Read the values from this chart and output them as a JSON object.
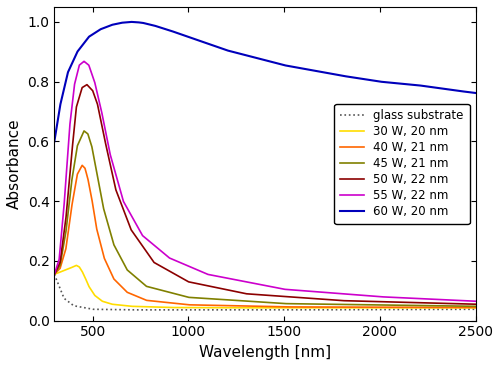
{
  "xlabel": "Wavelength [nm]",
  "ylabel": "Absorbance",
  "xlim": [
    300,
    2500
  ],
  "ylim": [
    0.0,
    1.05
  ],
  "legend_entries": [
    "glass substrate",
    "30 W, 20 nm",
    "40 W, 21 nm",
    "45 W, 21 nm",
    "50 W, 22 nm",
    "55 W, 22 nm",
    "60 W, 20 nm"
  ],
  "colors": [
    "#555555",
    "#FFDD00",
    "#FF6600",
    "#808000",
    "#8B0000",
    "#CC00CC",
    "#0000BB"
  ],
  "linestyles": [
    "dotted",
    "solid",
    "solid",
    "solid",
    "solid",
    "solid",
    "solid"
  ],
  "linewidths": [
    1.2,
    1.2,
    1.2,
    1.2,
    1.2,
    1.2,
    1.5
  ],
  "curves": {
    "glass": {
      "x": [
        300,
        350,
        400,
        500,
        700,
        1000,
        1500,
        2000,
        2500
      ],
      "y": [
        0.155,
        0.075,
        0.05,
        0.038,
        0.036,
        0.036,
        0.036,
        0.037,
        0.038
      ]
    },
    "30W": {
      "x": [
        300,
        340,
        380,
        415,
        430,
        445,
        460,
        480,
        510,
        550,
        600,
        700,
        900,
        1200,
        1800,
        2500
      ],
      "y": [
        0.155,
        0.165,
        0.175,
        0.185,
        0.18,
        0.165,
        0.145,
        0.115,
        0.085,
        0.065,
        0.055,
        0.048,
        0.044,
        0.043,
        0.043,
        0.043
      ]
    },
    "40W": {
      "x": [
        300,
        330,
        360,
        390,
        420,
        445,
        460,
        475,
        495,
        520,
        560,
        610,
        680,
        780,
        1000,
        1500,
        2500
      ],
      "y": [
        0.155,
        0.175,
        0.24,
        0.38,
        0.49,
        0.52,
        0.51,
        0.475,
        0.41,
        0.31,
        0.21,
        0.14,
        0.095,
        0.068,
        0.053,
        0.046,
        0.044
      ]
    },
    "45W": {
      "x": [
        300,
        330,
        360,
        390,
        420,
        455,
        475,
        495,
        520,
        555,
        610,
        680,
        780,
        1000,
        1500,
        2500
      ],
      "y": [
        0.155,
        0.185,
        0.295,
        0.465,
        0.585,
        0.635,
        0.625,
        0.585,
        0.5,
        0.38,
        0.255,
        0.17,
        0.115,
        0.078,
        0.057,
        0.048
      ]
    },
    "50W": {
      "x": [
        300,
        330,
        360,
        390,
        415,
        445,
        470,
        500,
        525,
        560,
        620,
        700,
        820,
        1000,
        1300,
        1800,
        2500
      ],
      "y": [
        0.155,
        0.195,
        0.34,
        0.555,
        0.715,
        0.78,
        0.79,
        0.77,
        0.725,
        0.615,
        0.44,
        0.305,
        0.195,
        0.13,
        0.09,
        0.067,
        0.055
      ]
    },
    "55W": {
      "x": [
        300,
        325,
        350,
        380,
        405,
        430,
        455,
        480,
        510,
        545,
        590,
        660,
        760,
        900,
        1100,
        1500,
        2000,
        2500
      ],
      "y": [
        0.155,
        0.205,
        0.38,
        0.65,
        0.79,
        0.855,
        0.868,
        0.855,
        0.8,
        0.705,
        0.56,
        0.4,
        0.285,
        0.21,
        0.155,
        0.105,
        0.08,
        0.065
      ]
    },
    "60W": {
      "x": [
        300,
        330,
        370,
        420,
        480,
        540,
        600,
        650,
        700,
        730,
        760,
        820,
        900,
        1000,
        1200,
        1500,
        1800,
        2000,
        2200,
        2400,
        2500
      ],
      "y": [
        0.6,
        0.72,
        0.83,
        0.9,
        0.95,
        0.975,
        0.99,
        0.997,
        1.0,
        0.999,
        0.997,
        0.988,
        0.972,
        0.95,
        0.905,
        0.855,
        0.82,
        0.8,
        0.788,
        0.77,
        0.762
      ]
    }
  }
}
